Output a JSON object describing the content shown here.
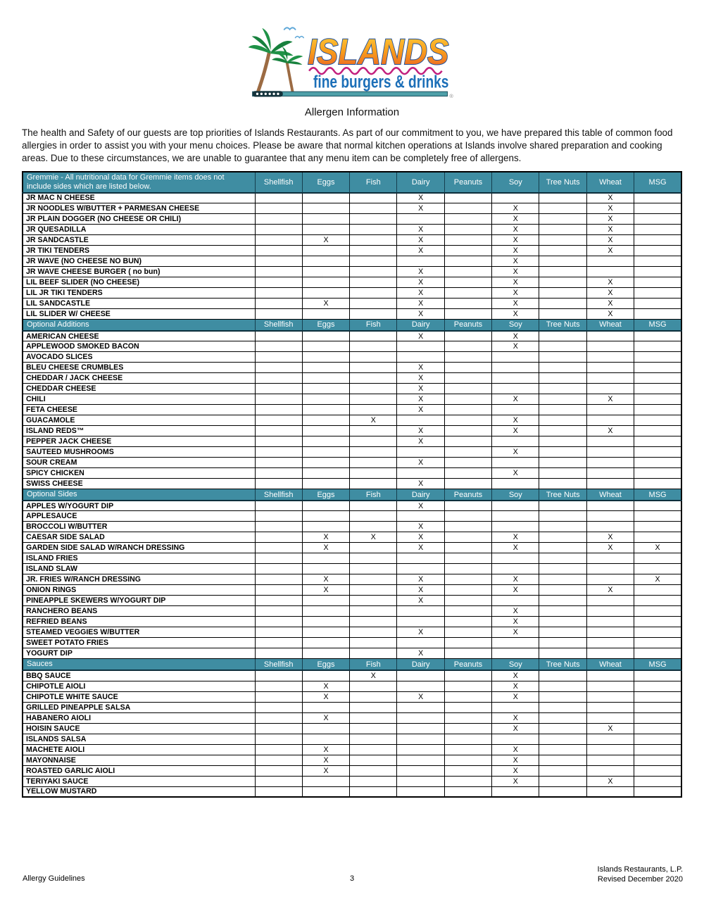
{
  "page": {
    "title": "Allergen Information",
    "intro": "The health and Safety of our guests are top priorities of Islands Restaurants. As part of our commitment to you, we have prepared this table of common food allergies in order to assist you with your menu choices. Please be aware that normal kitchen operations at Islands involve shared preparation and cooking areas. Due to these circumstances, we are unable to guarantee that any menu item can be completely free of allergens."
  },
  "logo": {
    "brand": "ISLANDS",
    "tagline": "fine burgers & drinks",
    "registered_mark": "®",
    "colors": {
      "brand_gradient_top": "#FFD23E",
      "brand_gradient_mid": "#F89C1C",
      "brand_gradient_bottom": "#E85B25",
      "brand_outline": "#1B4F9E",
      "tagline_blue": "#1C6FB8",
      "wave_pink": "#C2207E",
      "bar_teal": "#4E9FA8",
      "palm_green": "#1F9247",
      "trunk_brown": "#9C6B43",
      "bird_blue": "#5FA8D8"
    }
  },
  "table": {
    "header_bg": "#3F8DA2",
    "mark": "X",
    "allergen_columns": [
      "Shellfish",
      "Eggs",
      "Fish",
      "Dairy",
      "Peanuts",
      "Soy",
      "Tree Nuts",
      "Wheat",
      "MSG"
    ],
    "sections": [
      {
        "label": "Gremmie - All nutritional data for Gremmie items does not include sides which are listed below.",
        "rows": [
          {
            "name": "JR MAC N CHEESE",
            "allergens": [
              "Dairy",
              "Wheat"
            ]
          },
          {
            "name": "JR NOODLES W/BUTTER + PARMESAN CHEESE",
            "allergens": [
              "Dairy",
              "Soy",
              "Wheat"
            ]
          },
          {
            "name": "JR PLAIN DOGGER (NO CHEESE OR CHILI)",
            "allergens": [
              "Soy",
              "Wheat"
            ]
          },
          {
            "name": "JR QUESADILLA",
            "allergens": [
              "Dairy",
              "Soy",
              "Wheat"
            ]
          },
          {
            "name": "JR SANDCASTLE",
            "allergens": [
              "Eggs",
              "Dairy",
              "Soy",
              "Wheat"
            ]
          },
          {
            "name": "JR TIKI TENDERS",
            "allergens": [
              "Dairy",
              "Soy",
              "Wheat"
            ]
          },
          {
            "name": "JR WAVE (NO CHEESE NO BUN)",
            "allergens": [
              "Soy"
            ]
          },
          {
            "name": "JR WAVE CHEESE BURGER ( no bun)",
            "allergens": [
              "Dairy",
              "Soy"
            ]
          },
          {
            "name": "LIL BEEF SLIDER (NO CHEESE)",
            "allergens": [
              "Dairy",
              "Soy",
              "Wheat"
            ]
          },
          {
            "name": "LIL JR TIKI TENDERS",
            "allergens": [
              "Dairy",
              "Soy",
              "Wheat"
            ]
          },
          {
            "name": "LIL SANDCASTLE",
            "allergens": [
              "Eggs",
              "Dairy",
              "Soy",
              "Wheat"
            ]
          },
          {
            "name": "LIL SLIDER W/ CHEESE",
            "allergens": [
              "Dairy",
              "Soy",
              "Wheat"
            ]
          }
        ]
      },
      {
        "label": "Optional Additions",
        "rows": [
          {
            "name": "AMERICAN CHEESE",
            "allergens": [
              "Dairy",
              "Soy"
            ]
          },
          {
            "name": "APPLEWOOD SMOKED BACON",
            "allergens": [
              "Soy"
            ]
          },
          {
            "name": "AVOCADO SLICES",
            "allergens": []
          },
          {
            "name": "BLEU CHEESE CRUMBLES",
            "allergens": [
              "Dairy"
            ]
          },
          {
            "name": "CHEDDAR / JACK CHEESE",
            "allergens": [
              "Dairy"
            ]
          },
          {
            "name": "CHEDDAR CHEESE",
            "allergens": [
              "Dairy"
            ]
          },
          {
            "name": "CHILI",
            "allergens": [
              "Dairy",
              "Soy",
              "Wheat"
            ]
          },
          {
            "name": "FETA CHEESE",
            "allergens": [
              "Dairy"
            ]
          },
          {
            "name": "GUACAMOLE",
            "allergens": [
              "Fish",
              "Soy"
            ]
          },
          {
            "name": "ISLAND REDS™",
            "allergens": [
              "Dairy",
              "Soy",
              "Wheat"
            ]
          },
          {
            "name": "PEPPER JACK CHEESE",
            "allergens": [
              "Dairy"
            ]
          },
          {
            "name": "SAUTEED MUSHROOMS",
            "allergens": [
              "Soy"
            ]
          },
          {
            "name": "SOUR CREAM",
            "allergens": [
              "Dairy"
            ]
          },
          {
            "name": "SPICY CHICKEN",
            "allergens": [
              "Soy"
            ]
          },
          {
            "name": "SWISS CHEESE",
            "allergens": [
              "Dairy"
            ]
          }
        ]
      },
      {
        "label": "Optional Sides",
        "rows": [
          {
            "name": "APPLES W/YOGURT DIP",
            "allergens": [
              "Dairy"
            ]
          },
          {
            "name": "APPLESAUCE",
            "allergens": []
          },
          {
            "name": "BROCCOLI W/BUTTER",
            "allergens": [
              "Dairy"
            ]
          },
          {
            "name": "CAESAR SIDE SALAD",
            "allergens": [
              "Eggs",
              "Fish",
              "Dairy",
              "Soy",
              "Wheat"
            ]
          },
          {
            "name": "GARDEN SIDE SALAD W/RANCH DRESSING",
            "allergens": [
              "Eggs",
              "Dairy",
              "Soy",
              "Wheat",
              "MSG"
            ]
          },
          {
            "name": "ISLAND FRIES",
            "allergens": []
          },
          {
            "name": "ISLAND SLAW",
            "allergens": []
          },
          {
            "name": "JR. FRIES W/RANCH DRESSING",
            "allergens": [
              "Eggs",
              "Dairy",
              "Soy",
              "MSG"
            ]
          },
          {
            "name": "ONION RINGS",
            "allergens": [
              "Eggs",
              "Dairy",
              "Soy",
              "Wheat"
            ]
          },
          {
            "name": "PINEAPPLE SKEWERS W/YOGURT DIP",
            "allergens": [
              "Dairy"
            ]
          },
          {
            "name": "RANCHERO BEANS",
            "allergens": [
              "Soy"
            ]
          },
          {
            "name": "REFRIED BEANS",
            "allergens": [
              "Soy"
            ]
          },
          {
            "name": "STEAMED VEGGIES W/BUTTER",
            "allergens": [
              "Dairy",
              "Soy"
            ]
          },
          {
            "name": "SWEET POTATO FRIES",
            "allergens": []
          },
          {
            "name": "YOGURT DIP",
            "allergens": [
              "Dairy"
            ]
          }
        ]
      },
      {
        "label": "Sauces",
        "rows": [
          {
            "name": "BBQ SAUCE",
            "allergens": [
              "Fish",
              "Soy"
            ]
          },
          {
            "name": "CHIPOTLE AIOLI",
            "allergens": [
              "Eggs",
              "Soy"
            ]
          },
          {
            "name": "CHIPOTLE WHITE SAUCE",
            "allergens": [
              "Eggs",
              "Dairy",
              "Soy"
            ]
          },
          {
            "name": "GRILLED PINEAPPLE SALSA",
            "allergens": []
          },
          {
            "name": "HABANERO AIOLI",
            "allergens": [
              "Eggs",
              "Soy"
            ]
          },
          {
            "name": "HOISIN SAUCE",
            "allergens": [
              "Soy",
              "Wheat"
            ]
          },
          {
            "name": "ISLANDS SALSA",
            "allergens": []
          },
          {
            "name": "MACHETE AIOLI",
            "allergens": [
              "Eggs",
              "Soy"
            ]
          },
          {
            "name": "MAYONNAISE",
            "allergens": [
              "Eggs",
              "Soy"
            ]
          },
          {
            "name": "ROASTED GARLIC AIOLI",
            "allergens": [
              "Eggs",
              "Soy"
            ]
          },
          {
            "name": "TERIYAKI SAUCE",
            "allergens": [
              "Soy",
              "Wheat"
            ]
          },
          {
            "name": "YELLOW MUSTARD",
            "allergens": []
          }
        ]
      }
    ]
  },
  "footer": {
    "left": "Allergy Guidelines",
    "page_number": "3",
    "right_line1": "Islands Restaurants, L.P.",
    "right_line2": "Revised December 2020"
  }
}
